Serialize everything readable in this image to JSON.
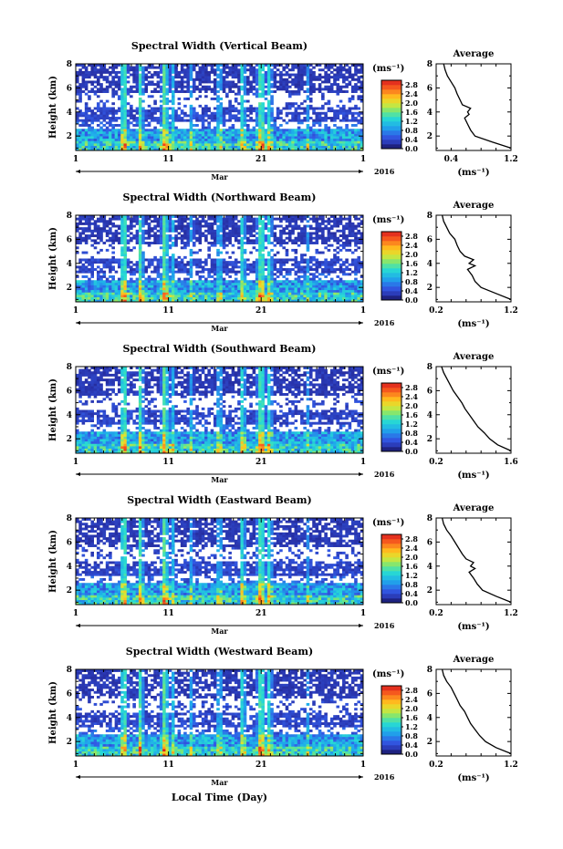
{
  "figure": {
    "month_label": "Mar",
    "year_label": "2016",
    "xlabel": "Local Time (Day)"
  },
  "chart_data": [
    {
      "type": "heatmap",
      "title": "Spectral Width (Vertical Beam)",
      "ylabel": "Height (km)",
      "x_ticks": [
        "1",
        "11",
        "21",
        "1"
      ],
      "y_ticks": [
        "2",
        "4",
        "6",
        "8"
      ],
      "xlim_days": [
        1,
        32
      ],
      "ylim_km": [
        0.8,
        8.0
      ],
      "colorbar": {
        "unit": "(ms⁻¹)",
        "ticks": [
          "0.0",
          "0.4",
          "0.8",
          "1.2",
          "1.6",
          "2.0",
          "2.4",
          "2.8"
        ],
        "range": [
          0.0,
          3.0
        ]
      },
      "average_profile": {
        "title": "Average",
        "xlabel": "(ms⁻¹)",
        "x_ticks": [
          "0.4",
          "1.2"
        ],
        "xlim": [
          0.2,
          1.2
        ],
        "y_ticks": [
          "2",
          "4",
          "6",
          "8"
        ],
        "heights_km": [
          1.0,
          1.5,
          2.0,
          2.5,
          3.0,
          3.5,
          3.8,
          4.0,
          4.3,
          4.6,
          5.0,
          5.5,
          6.0,
          6.5,
          7.0,
          7.5,
          8.0
        ],
        "values": [
          1.2,
          0.95,
          0.72,
          0.66,
          0.62,
          0.58,
          0.64,
          0.62,
          0.66,
          0.55,
          0.52,
          0.48,
          0.45,
          0.4,
          0.35,
          0.32,
          0.3
        ]
      }
    },
    {
      "type": "heatmap",
      "title": "Spectral Width (Northward Beam)",
      "ylabel": "Height (km)",
      "x_ticks": [
        "1",
        "11",
        "21",
        "1"
      ],
      "y_ticks": [
        "2",
        "4",
        "6",
        "8"
      ],
      "xlim_days": [
        1,
        32
      ],
      "ylim_km": [
        0.8,
        8.0
      ],
      "colorbar": {
        "unit": "(ms⁻¹)",
        "ticks": [
          "0.0",
          "0.4",
          "0.8",
          "1.2",
          "1.6",
          "2.0",
          "2.4",
          "2.8"
        ],
        "range": [
          0.0,
          3.0
        ]
      },
      "average_profile": {
        "title": "Average",
        "xlabel": "(ms⁻¹)",
        "x_ticks": [
          "0.2",
          "1.2"
        ],
        "xlim": [
          0.2,
          1.2
        ],
        "y_ticks": [
          "2",
          "4",
          "6",
          "8"
        ],
        "heights_km": [
          1.0,
          1.5,
          2.0,
          2.5,
          3.0,
          3.5,
          3.8,
          4.0,
          4.3,
          4.6,
          5.0,
          5.5,
          6.0,
          6.5,
          7.0,
          7.5,
          8.0
        ],
        "values": [
          1.2,
          1.0,
          0.8,
          0.72,
          0.68,
          0.62,
          0.72,
          0.64,
          0.7,
          0.58,
          0.52,
          0.48,
          0.45,
          0.38,
          0.34,
          0.3,
          0.28
        ]
      }
    },
    {
      "type": "heatmap",
      "title": "Spectral Width (Southward Beam)",
      "ylabel": "Height (km)",
      "x_ticks": [
        "1",
        "11",
        "21",
        "1"
      ],
      "y_ticks": [
        "2",
        "4",
        "6",
        "8"
      ],
      "xlim_days": [
        1,
        32
      ],
      "ylim_km": [
        0.8,
        8.0
      ],
      "colorbar": {
        "unit": "(ms⁻¹)",
        "ticks": [
          "0.0",
          "0.4",
          "0.8",
          "1.2",
          "1.6",
          "2.0",
          "2.4",
          "2.8"
        ],
        "range": [
          0.0,
          3.0
        ]
      },
      "average_profile": {
        "title": "Average",
        "xlabel": "(ms⁻¹)",
        "x_ticks": [
          "0.2",
          "1.6"
        ],
        "xlim": [
          0.2,
          1.6
        ],
        "y_ticks": [
          "2",
          "4",
          "6",
          "8"
        ],
        "heights_km": [
          1.0,
          1.5,
          2.0,
          2.5,
          3.0,
          3.5,
          4.0,
          4.5,
          5.0,
          5.5,
          6.0,
          6.5,
          7.0,
          7.5,
          8.0
        ],
        "values": [
          1.6,
          1.35,
          1.2,
          1.1,
          0.98,
          0.9,
          0.82,
          0.74,
          0.68,
          0.6,
          0.52,
          0.46,
          0.4,
          0.34,
          0.3
        ]
      }
    },
    {
      "type": "heatmap",
      "title": "Spectral Width (Eastward Beam)",
      "ylabel": "Height (km)",
      "x_ticks": [
        "1",
        "11",
        "21",
        "1"
      ],
      "y_ticks": [
        "2",
        "4",
        "6",
        "8"
      ],
      "xlim_days": [
        1,
        32
      ],
      "ylim_km": [
        0.8,
        8.0
      ],
      "colorbar": {
        "unit": "(ms⁻¹)",
        "ticks": [
          "0.0",
          "0.4",
          "0.8",
          "1.2",
          "1.6",
          "2.0",
          "2.4",
          "2.8"
        ],
        "range": [
          0.0,
          3.0
        ]
      },
      "average_profile": {
        "title": "Average",
        "xlabel": "(ms⁻¹)",
        "x_ticks": [
          "0.2",
          "1.2"
        ],
        "xlim": [
          0.2,
          1.2
        ],
        "y_ticks": [
          "2",
          "4",
          "6",
          "8"
        ],
        "heights_km": [
          1.0,
          1.5,
          2.0,
          2.5,
          3.0,
          3.5,
          3.8,
          4.0,
          4.3,
          4.6,
          5.0,
          5.5,
          6.0,
          6.5,
          7.0,
          7.5,
          8.0
        ],
        "values": [
          1.2,
          1.0,
          0.82,
          0.75,
          0.7,
          0.64,
          0.72,
          0.66,
          0.7,
          0.6,
          0.55,
          0.5,
          0.45,
          0.4,
          0.34,
          0.3,
          0.28
        ]
      }
    },
    {
      "type": "heatmap",
      "title": "Spectral Width (Westward Beam)",
      "ylabel": "Height (km)",
      "x_ticks": [
        "1",
        "11",
        "21",
        "1"
      ],
      "y_ticks": [
        "2",
        "4",
        "6",
        "8"
      ],
      "xlim_days": [
        1,
        32
      ],
      "ylim_km": [
        0.8,
        8.0
      ],
      "colorbar": {
        "unit": "(ms⁻¹)",
        "ticks": [
          "0.0",
          "0.4",
          "0.8",
          "1.2",
          "1.6",
          "2.0",
          "2.4",
          "2.8"
        ],
        "range": [
          0.0,
          3.0
        ]
      },
      "average_profile": {
        "title": "Average",
        "xlabel": "(ms⁻¹)",
        "x_ticks": [
          "0.2",
          "1.2"
        ],
        "xlim": [
          0.2,
          1.2
        ],
        "y_ticks": [
          "2",
          "4",
          "6",
          "8"
        ],
        "heights_km": [
          1.0,
          1.5,
          2.0,
          2.5,
          3.0,
          3.5,
          4.0,
          4.5,
          5.0,
          5.5,
          6.0,
          6.5,
          7.0,
          7.5,
          8.0
        ],
        "values": [
          1.2,
          1.0,
          0.86,
          0.78,
          0.72,
          0.66,
          0.62,
          0.58,
          0.52,
          0.48,
          0.44,
          0.4,
          0.34,
          0.3,
          0.28
        ]
      }
    }
  ]
}
